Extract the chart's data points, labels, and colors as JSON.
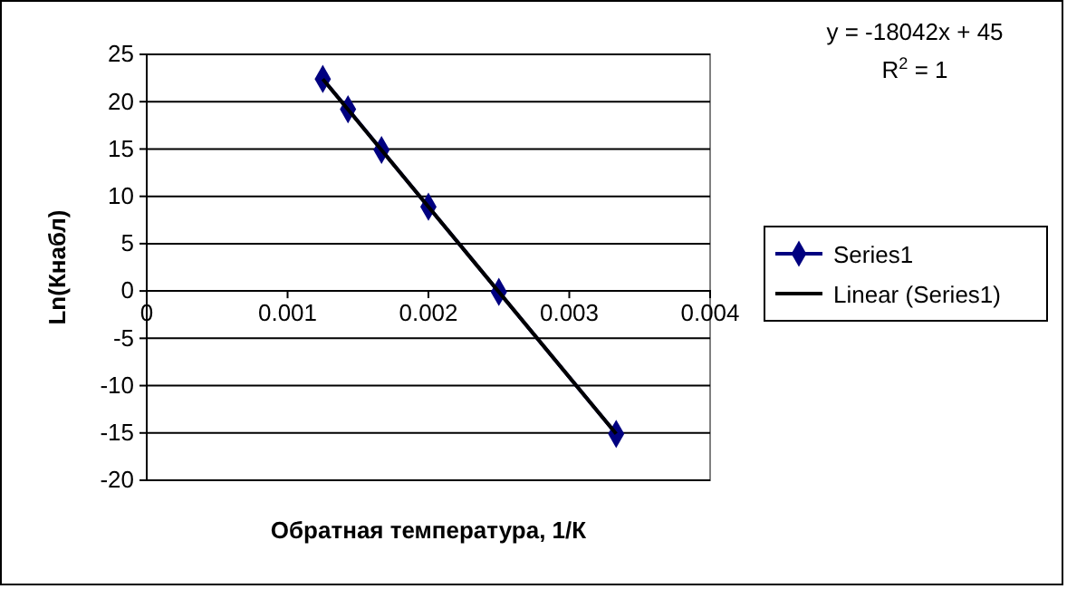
{
  "chart_data": {
    "type": "line",
    "xlabel": "Обратная температура, 1/К",
    "ylabel": "Ln(Кнабл)",
    "xlim": [
      0,
      0.004
    ],
    "xticks": [
      0,
      0.001,
      0.002,
      0.003,
      0.004
    ],
    "ylim": [
      -20,
      25
    ],
    "yticks": [
      -20,
      -15,
      -10,
      -5,
      0,
      5,
      10,
      15,
      20,
      25
    ],
    "grid": "y",
    "legend": "right",
    "annotations": [
      "y = -18042x + 45",
      "R$^{2}$ = 1"
    ],
    "series": [
      {
        "name": "Series1",
        "color": "#000080",
        "marker": "diamond",
        "x": [
          0.00125,
          0.001429,
          0.001667,
          0.002,
          0.0025,
          0.003333
        ],
        "values": [
          22.4,
          19.2,
          14.9,
          8.9,
          -0.1,
          -15.1
        ]
      },
      {
        "name": "Linear (Series1)",
        "color": "#000000",
        "marker": "none",
        "x": [
          0.00125,
          0.003333
        ],
        "values": [
          22.4,
          -15.1
        ]
      }
    ]
  }
}
